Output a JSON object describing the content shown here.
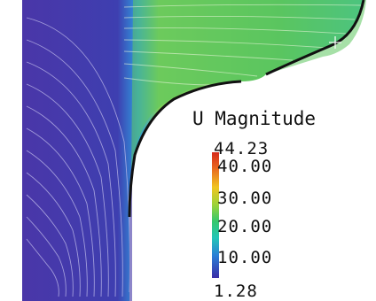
{
  "legend": {
    "title": "U Magnitude",
    "max": "44.23",
    "ticks": [
      "40.00",
      "30.00",
      "20.00",
      "10.00"
    ],
    "min": "1.28"
  },
  "colormap": {
    "low": "#3b2ea8",
    "mid_low": "#2a7fd6",
    "mid": "#35c86d",
    "mid_high": "#f0c521",
    "high": "#d42a1b"
  },
  "scene": {
    "background": "#ffffff",
    "inlet_region_color": "#8d86c9",
    "wall_color": "#111111",
    "cursor_color": "#ffffff"
  }
}
